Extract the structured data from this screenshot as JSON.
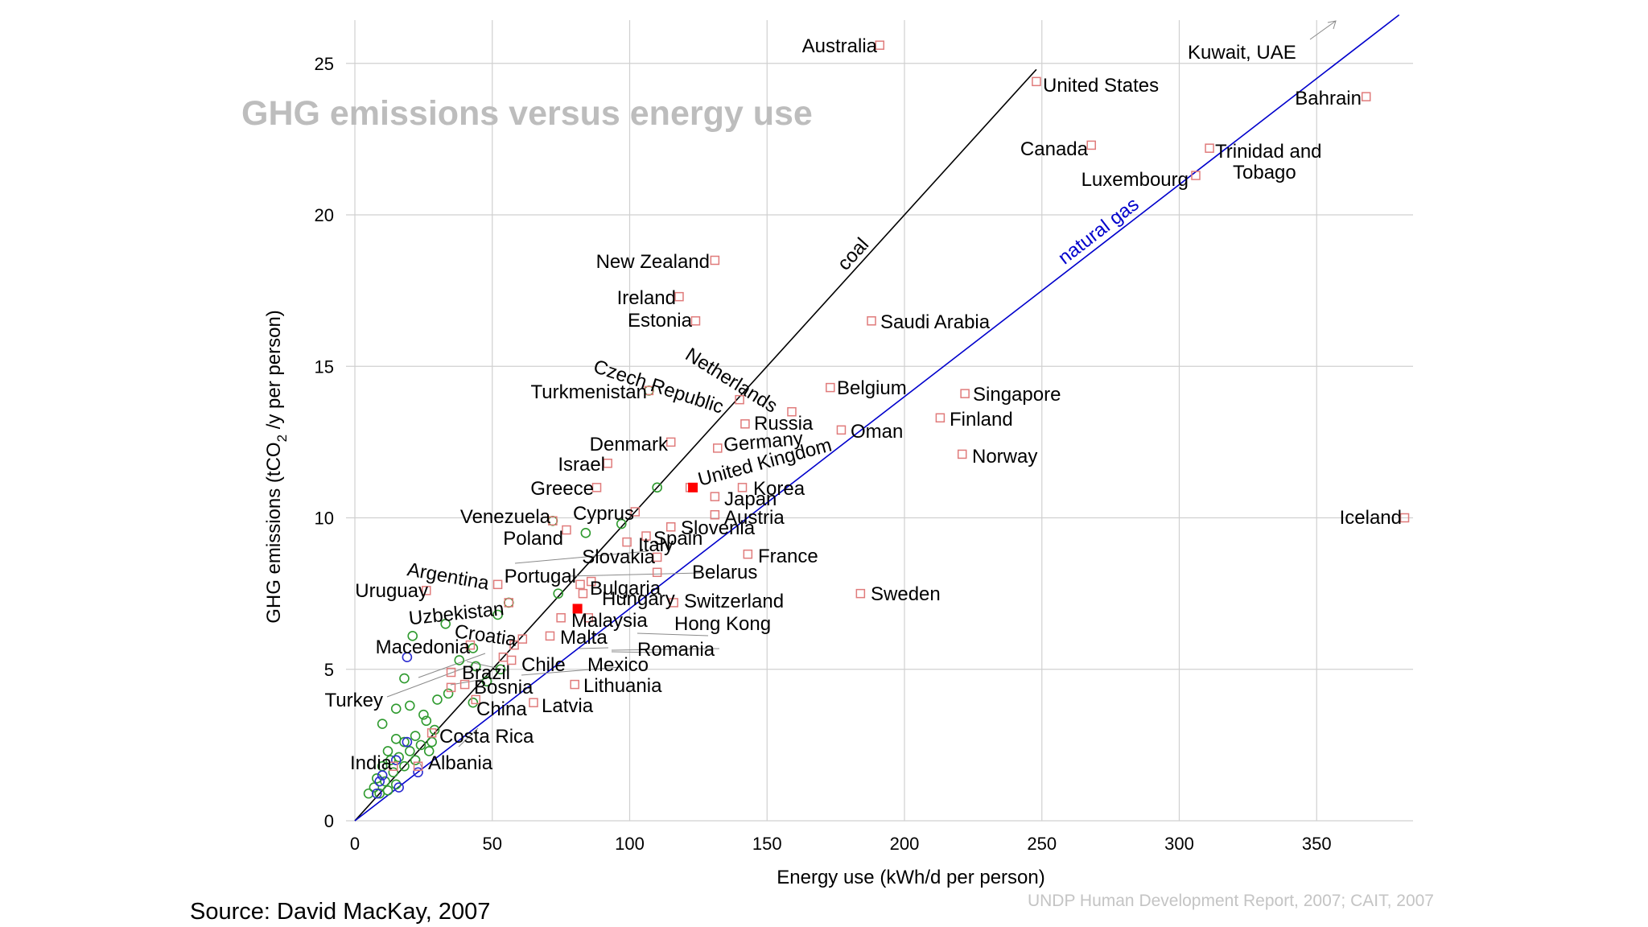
{
  "chart_data": {
    "type": "scatter",
    "title": "GHG emissions versus energy use",
    "xlabel": "Energy use (kWh/d per person)",
    "ylabel_parts": [
      "GHG emissions (tCO",
      "2",
      " /y per person)"
    ],
    "xlim": [
      0,
      385
    ],
    "ylim": [
      0,
      26.3
    ],
    "xticks": [
      0,
      50,
      100,
      150,
      200,
      250,
      300,
      350
    ],
    "yticks": [
      0,
      5,
      10,
      15,
      20,
      25
    ],
    "grid": true,
    "reference_lines": [
      {
        "label": "coal",
        "slope": 0.1,
        "color": "#000000"
      },
      {
        "label": "natural gas",
        "slope": 0.07,
        "color": "#0000cc"
      }
    ],
    "colors": {
      "labeled": "#e07b7b",
      "highlight": "#ff0000",
      "green": "#2e9a2e",
      "blue": "#2c2cd0"
    },
    "labeled_points": [
      {
        "name": "Australia",
        "x": 191,
        "y": 25.6
      },
      {
        "name": "Kuwait, UAE",
        "x": 340,
        "y": 25.3
      },
      {
        "name": "United States",
        "x": 248,
        "y": 24.4
      },
      {
        "name": "Bahrain",
        "x": 368,
        "y": 23.9
      },
      {
        "name": "Canada",
        "x": 268,
        "y": 22.3
      },
      {
        "name": "Trinidad and",
        "x": 311,
        "y": 22.2
      },
      {
        "name": "Tobago",
        "x": 311,
        "y": 22.2
      },
      {
        "name": "Luxembourg",
        "x": 306,
        "y": 21.3
      },
      {
        "name": "New Zealand",
        "x": 131,
        "y": 18.5
      },
      {
        "name": "Ireland",
        "x": 118,
        "y": 17.3
      },
      {
        "name": "Estonia",
        "x": 124,
        "y": 16.5
      },
      {
        "name": "Saudi Arabia",
        "x": 188,
        "y": 16.5
      },
      {
        "name": "Turkmenistan",
        "x": 107,
        "y": 14.2
      },
      {
        "name": "Czech Republic",
        "x": 140,
        "y": 13.9
      },
      {
        "name": "Netherlands",
        "x": 159,
        "y": 13.5
      },
      {
        "name": "Belgium",
        "x": 173,
        "y": 14.3
      },
      {
        "name": "Singapore",
        "x": 222,
        "y": 14.1
      },
      {
        "name": "Russia",
        "x": 142,
        "y": 13.1
      },
      {
        "name": "Finland",
        "x": 213,
        "y": 13.3
      },
      {
        "name": "Oman",
        "x": 177,
        "y": 12.9
      },
      {
        "name": "Denmark",
        "x": 115,
        "y": 12.5
      },
      {
        "name": "Germany",
        "x": 132,
        "y": 12.3
      },
      {
        "name": "Norway",
        "x": 221,
        "y": 12.1
      },
      {
        "name": "Israel",
        "x": 92,
        "y": 11.8
      },
      {
        "name": "United Kingdom",
        "x": 122,
        "y": 11.0
      },
      {
        "name": "Korea",
        "x": 141,
        "y": 11.0
      },
      {
        "name": "Greece",
        "x": 88,
        "y": 11.0
      },
      {
        "name": "Japan",
        "x": 131,
        "y": 10.7
      },
      {
        "name": "Cyprus",
        "x": 102,
        "y": 10.2
      },
      {
        "name": "Austria",
        "x": 131,
        "y": 10.1
      },
      {
        "name": "Venezuela",
        "x": 72,
        "y": 9.9
      },
      {
        "name": "Slovenia",
        "x": 115,
        "y": 9.7
      },
      {
        "name": "Iceland",
        "x": 382,
        "y": 10.0
      },
      {
        "name": "Poland",
        "x": 77,
        "y": 9.6
      },
      {
        "name": "Spain",
        "x": 106,
        "y": 9.4
      },
      {
        "name": "Italy",
        "x": 99,
        "y": 9.2
      },
      {
        "name": "France",
        "x": 143,
        "y": 8.8
      },
      {
        "name": "Slovakia",
        "x": 110,
        "y": 8.7
      },
      {
        "name": "Belarus",
        "x": 110,
        "y": 8.2
      },
      {
        "name": "Argentina",
        "x": 52,
        "y": 7.8
      },
      {
        "name": "Portugal",
        "x": 86,
        "y": 7.9
      },
      {
        "name": "Bulgaria",
        "x": 82,
        "y": 7.8
      },
      {
        "name": "Uruguay",
        "x": 26,
        "y": 7.6
      },
      {
        "name": "Hungary",
        "x": 83,
        "y": 7.5
      },
      {
        "name": "Switzerland",
        "x": 116,
        "y": 7.2
      },
      {
        "name": "Sweden",
        "x": 184,
        "y": 7.5
      },
      {
        "name": "Uzbekistan",
        "x": 56,
        "y": 7.2
      },
      {
        "name": "Malaysia",
        "x": 75,
        "y": 6.7
      },
      {
        "name": "Hong Kong",
        "x": 85,
        "y": 6.7
      },
      {
        "name": "Croatia",
        "x": 61,
        "y": 6.0
      },
      {
        "name": "Malta",
        "x": 71,
        "y": 6.1
      },
      {
        "name": "Macedonia",
        "x": 42,
        "y": 5.8
      },
      {
        "name": "Romania",
        "x": 58,
        "y": 5.8
      },
      {
        "name": "Chile",
        "x": 54,
        "y": 5.4
      },
      {
        "name": "Mexico",
        "x": 57,
        "y": 5.3
      },
      {
        "name": "Brazil",
        "x": 35,
        "y": 4.9
      },
      {
        "name": "Bosnia",
        "x": 40,
        "y": 4.5
      },
      {
        "name": "Lithuania",
        "x": 80,
        "y": 4.5
      },
      {
        "name": "Turkey",
        "x": 35,
        "y": 4.4
      },
      {
        "name": "China",
        "x": 44,
        "y": 4.0
      },
      {
        "name": "Latvia",
        "x": 65,
        "y": 3.9
      },
      {
        "name": "Costa Rica",
        "x": 28,
        "y": 2.9
      },
      {
        "name": "India",
        "x": 14,
        "y": 1.8
      },
      {
        "name": "Albania",
        "x": 23,
        "y": 1.8
      }
    ],
    "highlight_points": [
      {
        "x": 123,
        "y": 11.0
      },
      {
        "x": 81,
        "y": 7.0
      }
    ],
    "green_points": [
      {
        "x": 107,
        "y": 14.2
      },
      {
        "x": 110,
        "y": 11.0
      },
      {
        "x": 72,
        "y": 9.9
      },
      {
        "x": 97,
        "y": 9.8
      },
      {
        "x": 84,
        "y": 9.5
      },
      {
        "x": 74,
        "y": 7.5
      },
      {
        "x": 56,
        "y": 7.2
      },
      {
        "x": 52,
        "y": 6.8
      },
      {
        "x": 33,
        "y": 6.5
      },
      {
        "x": 21,
        "y": 6.1
      },
      {
        "x": 43,
        "y": 5.7
      },
      {
        "x": 38,
        "y": 5.3
      },
      {
        "x": 44,
        "y": 5.1
      },
      {
        "x": 53,
        "y": 5.0
      },
      {
        "x": 18,
        "y": 4.7
      },
      {
        "x": 48,
        "y": 4.6
      },
      {
        "x": 34,
        "y": 4.2
      },
      {
        "x": 30,
        "y": 4.0
      },
      {
        "x": 43,
        "y": 3.9
      },
      {
        "x": 20,
        "y": 3.8
      },
      {
        "x": 15,
        "y": 3.7
      },
      {
        "x": 25,
        "y": 3.5
      },
      {
        "x": 26,
        "y": 3.3
      },
      {
        "x": 10,
        "y": 3.2
      },
      {
        "x": 29,
        "y": 3.0
      },
      {
        "x": 22,
        "y": 2.8
      },
      {
        "x": 15,
        "y": 2.7
      },
      {
        "x": 18,
        "y": 2.6
      },
      {
        "x": 28,
        "y": 2.6
      },
      {
        "x": 24,
        "y": 2.5
      },
      {
        "x": 12,
        "y": 2.3
      },
      {
        "x": 20,
        "y": 2.3
      },
      {
        "x": 27,
        "y": 2.3
      },
      {
        "x": 16,
        "y": 2.1
      },
      {
        "x": 13,
        "y": 2.0
      },
      {
        "x": 22,
        "y": 2.0
      },
      {
        "x": 10,
        "y": 1.8
      },
      {
        "x": 18,
        "y": 1.8
      },
      {
        "x": 14,
        "y": 1.6
      },
      {
        "x": 8,
        "y": 1.4
      },
      {
        "x": 11,
        "y": 1.3
      },
      {
        "x": 15,
        "y": 1.2
      },
      {
        "x": 7,
        "y": 1.1
      },
      {
        "x": 5,
        "y": 0.9
      },
      {
        "x": 9,
        "y": 0.9
      },
      {
        "x": 12,
        "y": 1.0
      }
    ],
    "blue_points": [
      {
        "x": 19,
        "y": 5.4
      },
      {
        "x": 19,
        "y": 2.6
      },
      {
        "x": 15,
        "y": 2.0
      },
      {
        "x": 23,
        "y": 1.6
      },
      {
        "x": 10,
        "y": 1.5
      },
      {
        "x": 9,
        "y": 1.3
      },
      {
        "x": 16,
        "y": 1.1
      },
      {
        "x": 8,
        "y": 0.9
      }
    ]
  },
  "credit": "UNDP Human Development Report, 2007; CAIT, 2007",
  "source": "Source: David MacKay, 2007"
}
